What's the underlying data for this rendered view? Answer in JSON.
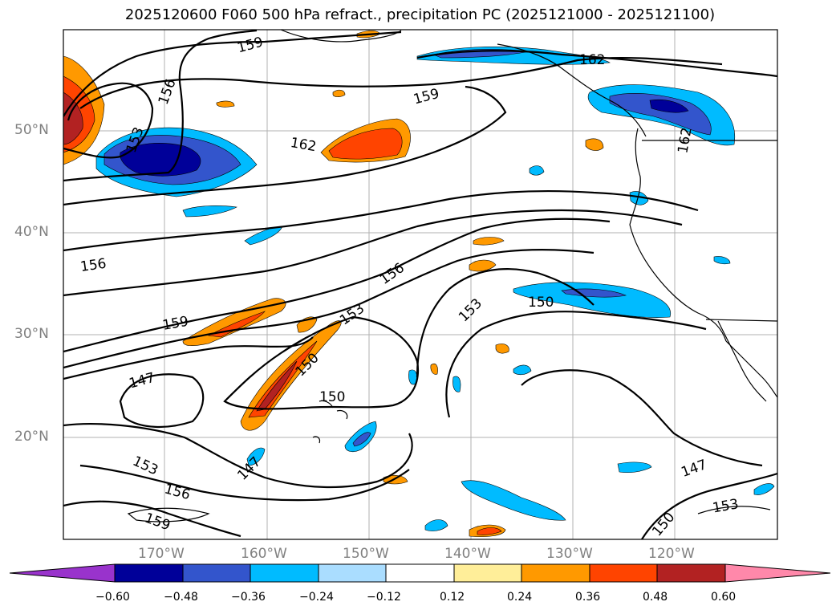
{
  "title": "2025120600 F060 500 hPa refract., precipitation PC (2025121000 - 2025121100)",
  "lat_labels": [
    "50°N",
    "40°N",
    "30°N",
    "20°N"
  ],
  "lon_labels": [
    "170°W",
    "160°W",
    "150°W",
    "140°W",
    "130°W",
    "120°W"
  ],
  "colorbar": {
    "ticks": [
      "−0.60",
      "−0.48",
      "−0.36",
      "−0.24",
      "−0.12",
      "0.12",
      "0.24",
      "0.36",
      "0.48",
      "0.60"
    ],
    "colors": [
      "#9933cc",
      "#000099",
      "#3355cc",
      "#00bbff",
      "#aaddff",
      "#ffffff",
      "#ffee99",
      "#ff9900",
      "#ff4400",
      "#b22222",
      "#ff88aa"
    ]
  },
  "contour_labels": [
    "159",
    "156",
    "153",
    "162",
    "159",
    "162",
    "156",
    "159",
    "156",
    "153",
    "150",
    "153",
    "150",
    "150",
    "147",
    "147",
    "153",
    "156",
    "159",
    "147",
    "150",
    "153",
    "162"
  ],
  "colors": {
    "grid": "#b0b0b0",
    "contour": "#000000",
    "axis_label": "#808080"
  }
}
